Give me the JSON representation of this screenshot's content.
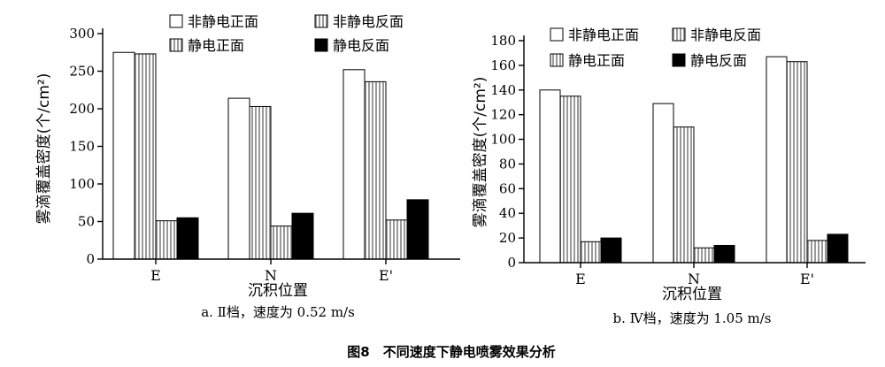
{
  "figure_title": "图8　不同速度下静电喷雾效果分析",
  "chart_data": [
    {
      "type": "bar",
      "caption": "a. Ⅱ档，速度为 0.52 m/s",
      "xlabel": "沉积位置",
      "ylabel": "雾滴覆盖密度(个/cm²)",
      "ylim": [
        0,
        300
      ],
      "yticks": [
        0,
        50,
        100,
        150,
        200,
        250,
        300
      ],
      "categories": [
        "E",
        "N",
        "E'"
      ],
      "series": [
        {
          "name": "非静电正面",
          "values": [
            275,
            214,
            252
          ],
          "fill": "#ffffff"
        },
        {
          "name": "非静电反面",
          "values": [
            273,
            203,
            236
          ],
          "fill": "stripes"
        },
        {
          "name": "静电正面",
          "values": [
            51,
            44,
            52
          ],
          "fill": "stripes"
        },
        {
          "name": "静电反面",
          "values": [
            55,
            61,
            79
          ],
          "fill": "#000000"
        }
      ],
      "legend_position": "top-right"
    },
    {
      "type": "bar",
      "caption": "b. Ⅳ档，速度为 1.05 m/s",
      "xlabel": "沉积位置",
      "ylabel": "雾滴覆盖密度(个/cm²)",
      "ylim": [
        0,
        180
      ],
      "yticks": [
        0,
        20,
        40,
        60,
        80,
        100,
        120,
        140,
        160,
        180
      ],
      "categories": [
        "E",
        "N",
        "E'"
      ],
      "series": [
        {
          "name": "非静电正面",
          "values": [
            140,
            129,
            167
          ],
          "fill": "#ffffff"
        },
        {
          "name": "非静电反面",
          "values": [
            135,
            110,
            163
          ],
          "fill": "stripes"
        },
        {
          "name": "静电正面",
          "values": [
            17,
            12,
            18
          ],
          "fill": "stripes"
        },
        {
          "name": "静电反面",
          "values": [
            20,
            14,
            23
          ],
          "fill": "#000000"
        }
      ],
      "legend_position": "top-right"
    }
  ]
}
